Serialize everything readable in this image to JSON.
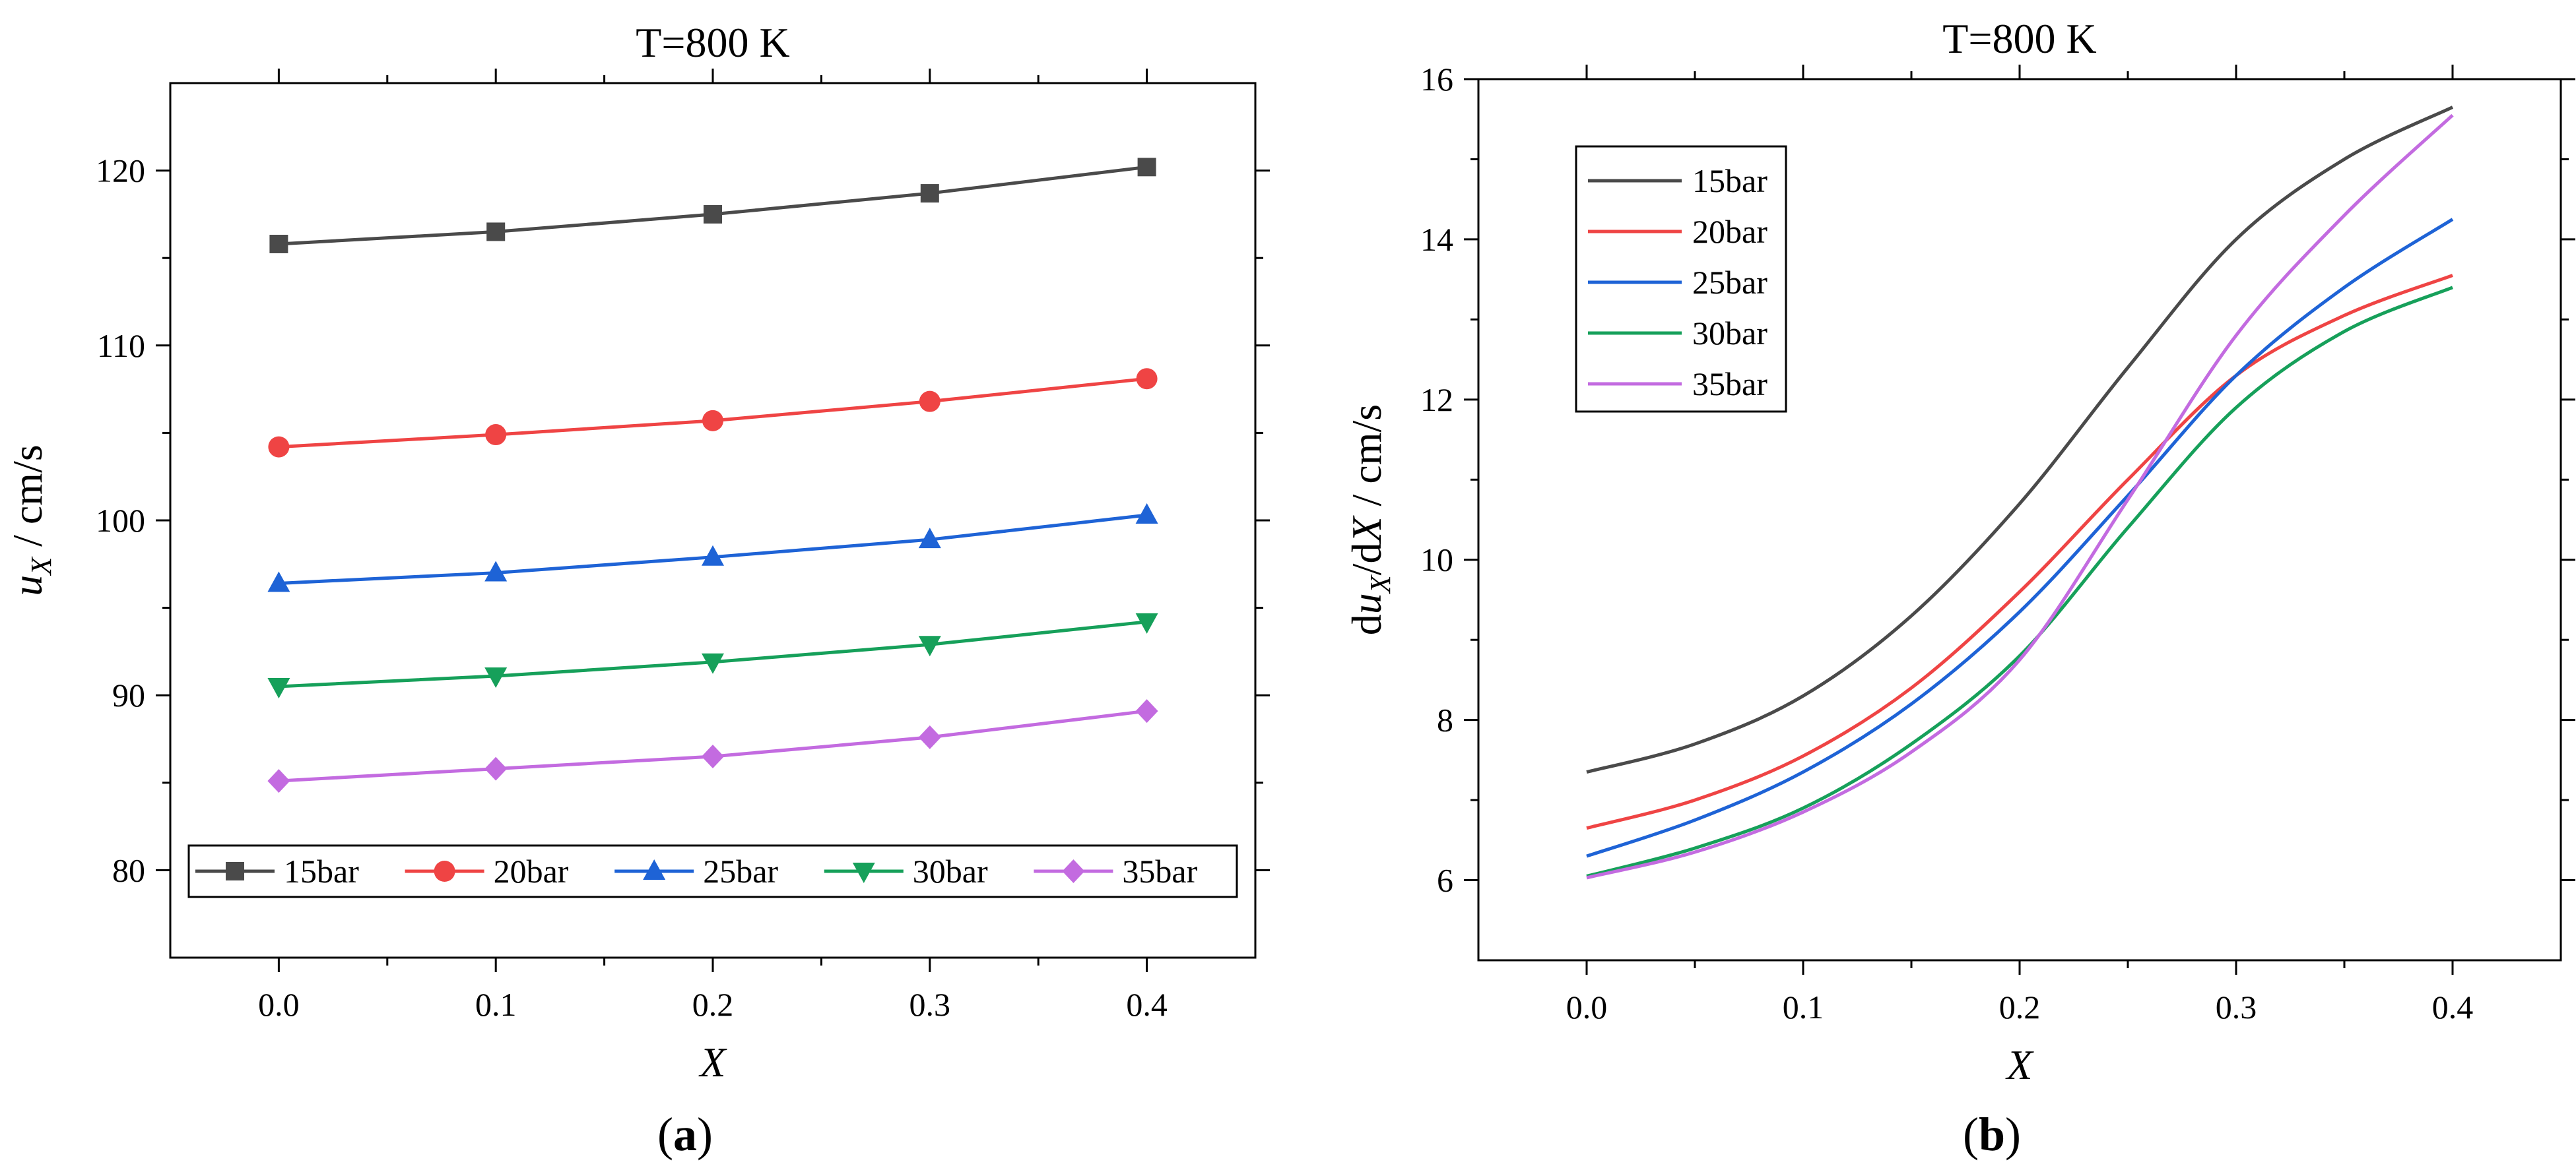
{
  "chart_data": [
    {
      "type": "line",
      "title": "T=800 K",
      "xlabel": "X",
      "ylabel_parts": [
        "u",
        "X",
        " / cm/s"
      ],
      "xlim": [
        -0.05,
        0.45
      ],
      "ylim": [
        75,
        125
      ],
      "xticks": [
        0.0,
        0.1,
        0.2,
        0.3,
        0.4
      ],
      "xtick_labels": [
        "0.0",
        "0.1",
        "0.2",
        "0.3",
        "0.4"
      ],
      "yticks": [
        80,
        90,
        100,
        110,
        120
      ],
      "ytick_labels": [
        "80",
        "90",
        "100",
        "110",
        "120"
      ],
      "legend_position": "bottom",
      "caption_parts": [
        "(",
        "a",
        ")"
      ],
      "x": [
        0.0,
        0.1,
        0.2,
        0.3,
        0.4
      ],
      "series": [
        {
          "name": "15bar",
          "color": "#4a4a4a",
          "marker": "square",
          "values": [
            115.8,
            116.5,
            117.5,
            118.7,
            120.2
          ]
        },
        {
          "name": "20bar",
          "color": "#ef4444",
          "marker": "circle",
          "values": [
            104.2,
            104.9,
            105.7,
            106.8,
            108.1
          ]
        },
        {
          "name": "25bar",
          "color": "#1e63d6",
          "marker": "triangle-up",
          "values": [
            96.4,
            97.0,
            97.9,
            98.9,
            100.3
          ]
        },
        {
          "name": "30bar",
          "color": "#16a05a",
          "marker": "triangle-down",
          "values": [
            90.5,
            91.1,
            91.9,
            92.9,
            94.2
          ]
        },
        {
          "name": "35bar",
          "color": "#c36be0",
          "marker": "diamond",
          "values": [
            85.1,
            85.8,
            86.5,
            87.6,
            89.1
          ]
        }
      ]
    },
    {
      "type": "line",
      "title": "T=800 K",
      "xlabel": "X",
      "ylabel_parts": [
        "du",
        "X",
        "/d",
        "X",
        "  /  cm/s"
      ],
      "xlim": [
        -0.05,
        0.45
      ],
      "ylim": [
        5,
        16
      ],
      "xticks": [
        0.0,
        0.1,
        0.2,
        0.3,
        0.4
      ],
      "xtick_labels": [
        "0.0",
        "0.1",
        "0.2",
        "0.3",
        "0.4"
      ],
      "yticks": [
        6,
        8,
        10,
        12,
        14,
        16
      ],
      "ytick_labels": [
        "6",
        "8",
        "10",
        "12",
        "14",
        "16"
      ],
      "legend_position": "top-left",
      "caption_parts": [
        "(",
        "b",
        ")"
      ],
      "x": [
        0.0,
        0.05,
        0.1,
        0.15,
        0.2,
        0.25,
        0.3,
        0.35,
        0.4
      ],
      "series": [
        {
          "name": "15bar",
          "color": "#4a4a4a",
          "values": [
            7.35,
            7.7,
            8.3,
            9.3,
            10.7,
            12.4,
            14.0,
            15.0,
            15.65
          ]
        },
        {
          "name": "20bar",
          "color": "#ef4444",
          "values": [
            6.65,
            7.0,
            7.55,
            8.4,
            9.6,
            11.0,
            12.3,
            13.05,
            13.55
          ]
        },
        {
          "name": "25bar",
          "color": "#1e63d6",
          "values": [
            6.3,
            6.75,
            7.35,
            8.2,
            9.35,
            10.8,
            12.3,
            13.4,
            14.25
          ]
        },
        {
          "name": "30bar",
          "color": "#16a05a",
          "values": [
            6.05,
            6.4,
            6.9,
            7.7,
            8.8,
            10.4,
            11.9,
            12.85,
            13.4
          ]
        },
        {
          "name": "35bar",
          "color": "#c36be0",
          "values": [
            6.03,
            6.35,
            6.85,
            7.6,
            8.75,
            10.75,
            12.8,
            14.3,
            15.55
          ]
        }
      ]
    }
  ]
}
